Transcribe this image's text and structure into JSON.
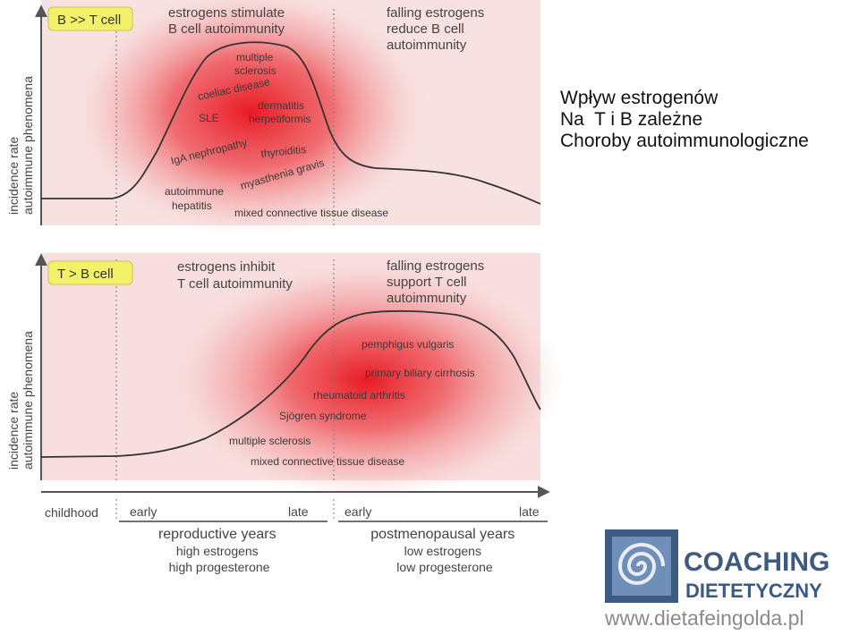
{
  "top_panel": {
    "badge": "B >> T cell",
    "note_left": [
      "estrogens stimulate",
      "B cell autoimmunity"
    ],
    "note_right": [
      "falling estrogens",
      "reduce B cell",
      "autoimmunity"
    ],
    "y_label": [
      "incidence rate",
      "autoimmune phenomena"
    ],
    "diseases": {
      "ms": [
        "multiple",
        "sclerosis"
      ],
      "celiac": "coeliac disease",
      "sle": "SLE",
      "dh": [
        "dermatitis",
        "herpetiformis"
      ],
      "iga": "IgA nephropathy",
      "thyroiditis": "thyroiditis",
      "mg": "myasthenia gravis",
      "aih": [
        "autoimmune",
        "hepatitis"
      ],
      "mctd": "mixed connective tissue disease"
    }
  },
  "bottom_panel": {
    "badge": "T > B cell",
    "note_left": [
      "estrogens inhibit",
      "T cell autoimmunity"
    ],
    "note_right": [
      "falling estrogens",
      "support T cell",
      "autoimmunity"
    ],
    "y_label": [
      "incidence rate",
      "autoimmune phenomena"
    ],
    "diseases": {
      "pv": "pemphigus vulgaris",
      "pbc": "primary biliary cirrhosis",
      "ra": "rheumatoid arthritis",
      "sjogren": "Sjögren syndrome",
      "ms": "multiple sclerosis",
      "mctd": "mixed connective tissue disease"
    }
  },
  "timeline": {
    "childhood": "childhood",
    "early1": "early",
    "late1": "late",
    "early2": "early",
    "late2": "late",
    "repro": [
      "reproductive years",
      "high estrogens",
      "high progesterone"
    ],
    "postmeno": [
      "postmenopausal years",
      "low estrogens",
      "low progesterone"
    ]
  },
  "caption": [
    "Wpływ estrogenów",
    "Na  T i B zależne",
    "Choroby autoimmunologiczne"
  ],
  "logo": {
    "word1": "COACHING",
    "word2": "DIETETYCZNY",
    "url": "www.dietafeingolda.pl"
  },
  "colors": {
    "badge": "#f3f06a",
    "heat": "#e8101a",
    "panel": "#f7dcdc",
    "brand": "#3d5a82"
  }
}
